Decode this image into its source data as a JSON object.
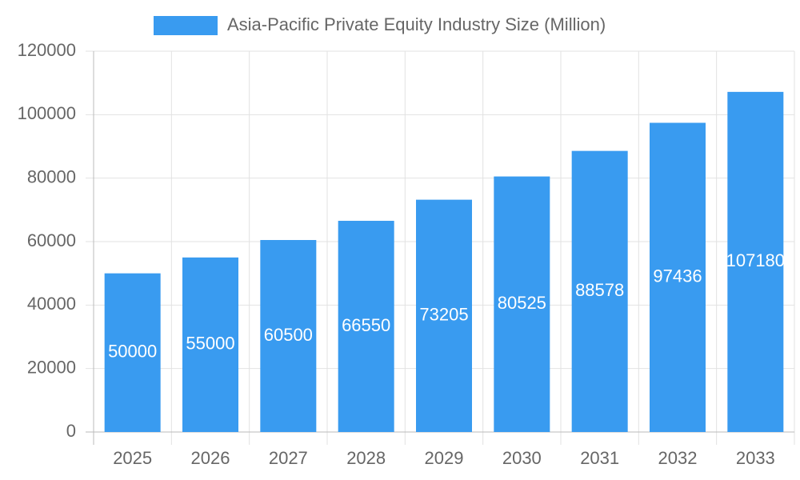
{
  "chart_data": {
    "type": "bar",
    "legend": "Asia-Pacific Private Equity Industry Size (Million)",
    "categories": [
      "2025",
      "2026",
      "2027",
      "2028",
      "2029",
      "2030",
      "2031",
      "2032",
      "2033"
    ],
    "values": [
      50000,
      55000,
      60500,
      66550,
      73205,
      80525,
      88578,
      97436,
      107180
    ],
    "color": "#399bf0",
    "ylim": [
      0,
      120000
    ],
    "yticks": [
      0,
      20000,
      40000,
      60000,
      80000,
      100000,
      120000
    ],
    "grid": true,
    "data_labels": true
  }
}
